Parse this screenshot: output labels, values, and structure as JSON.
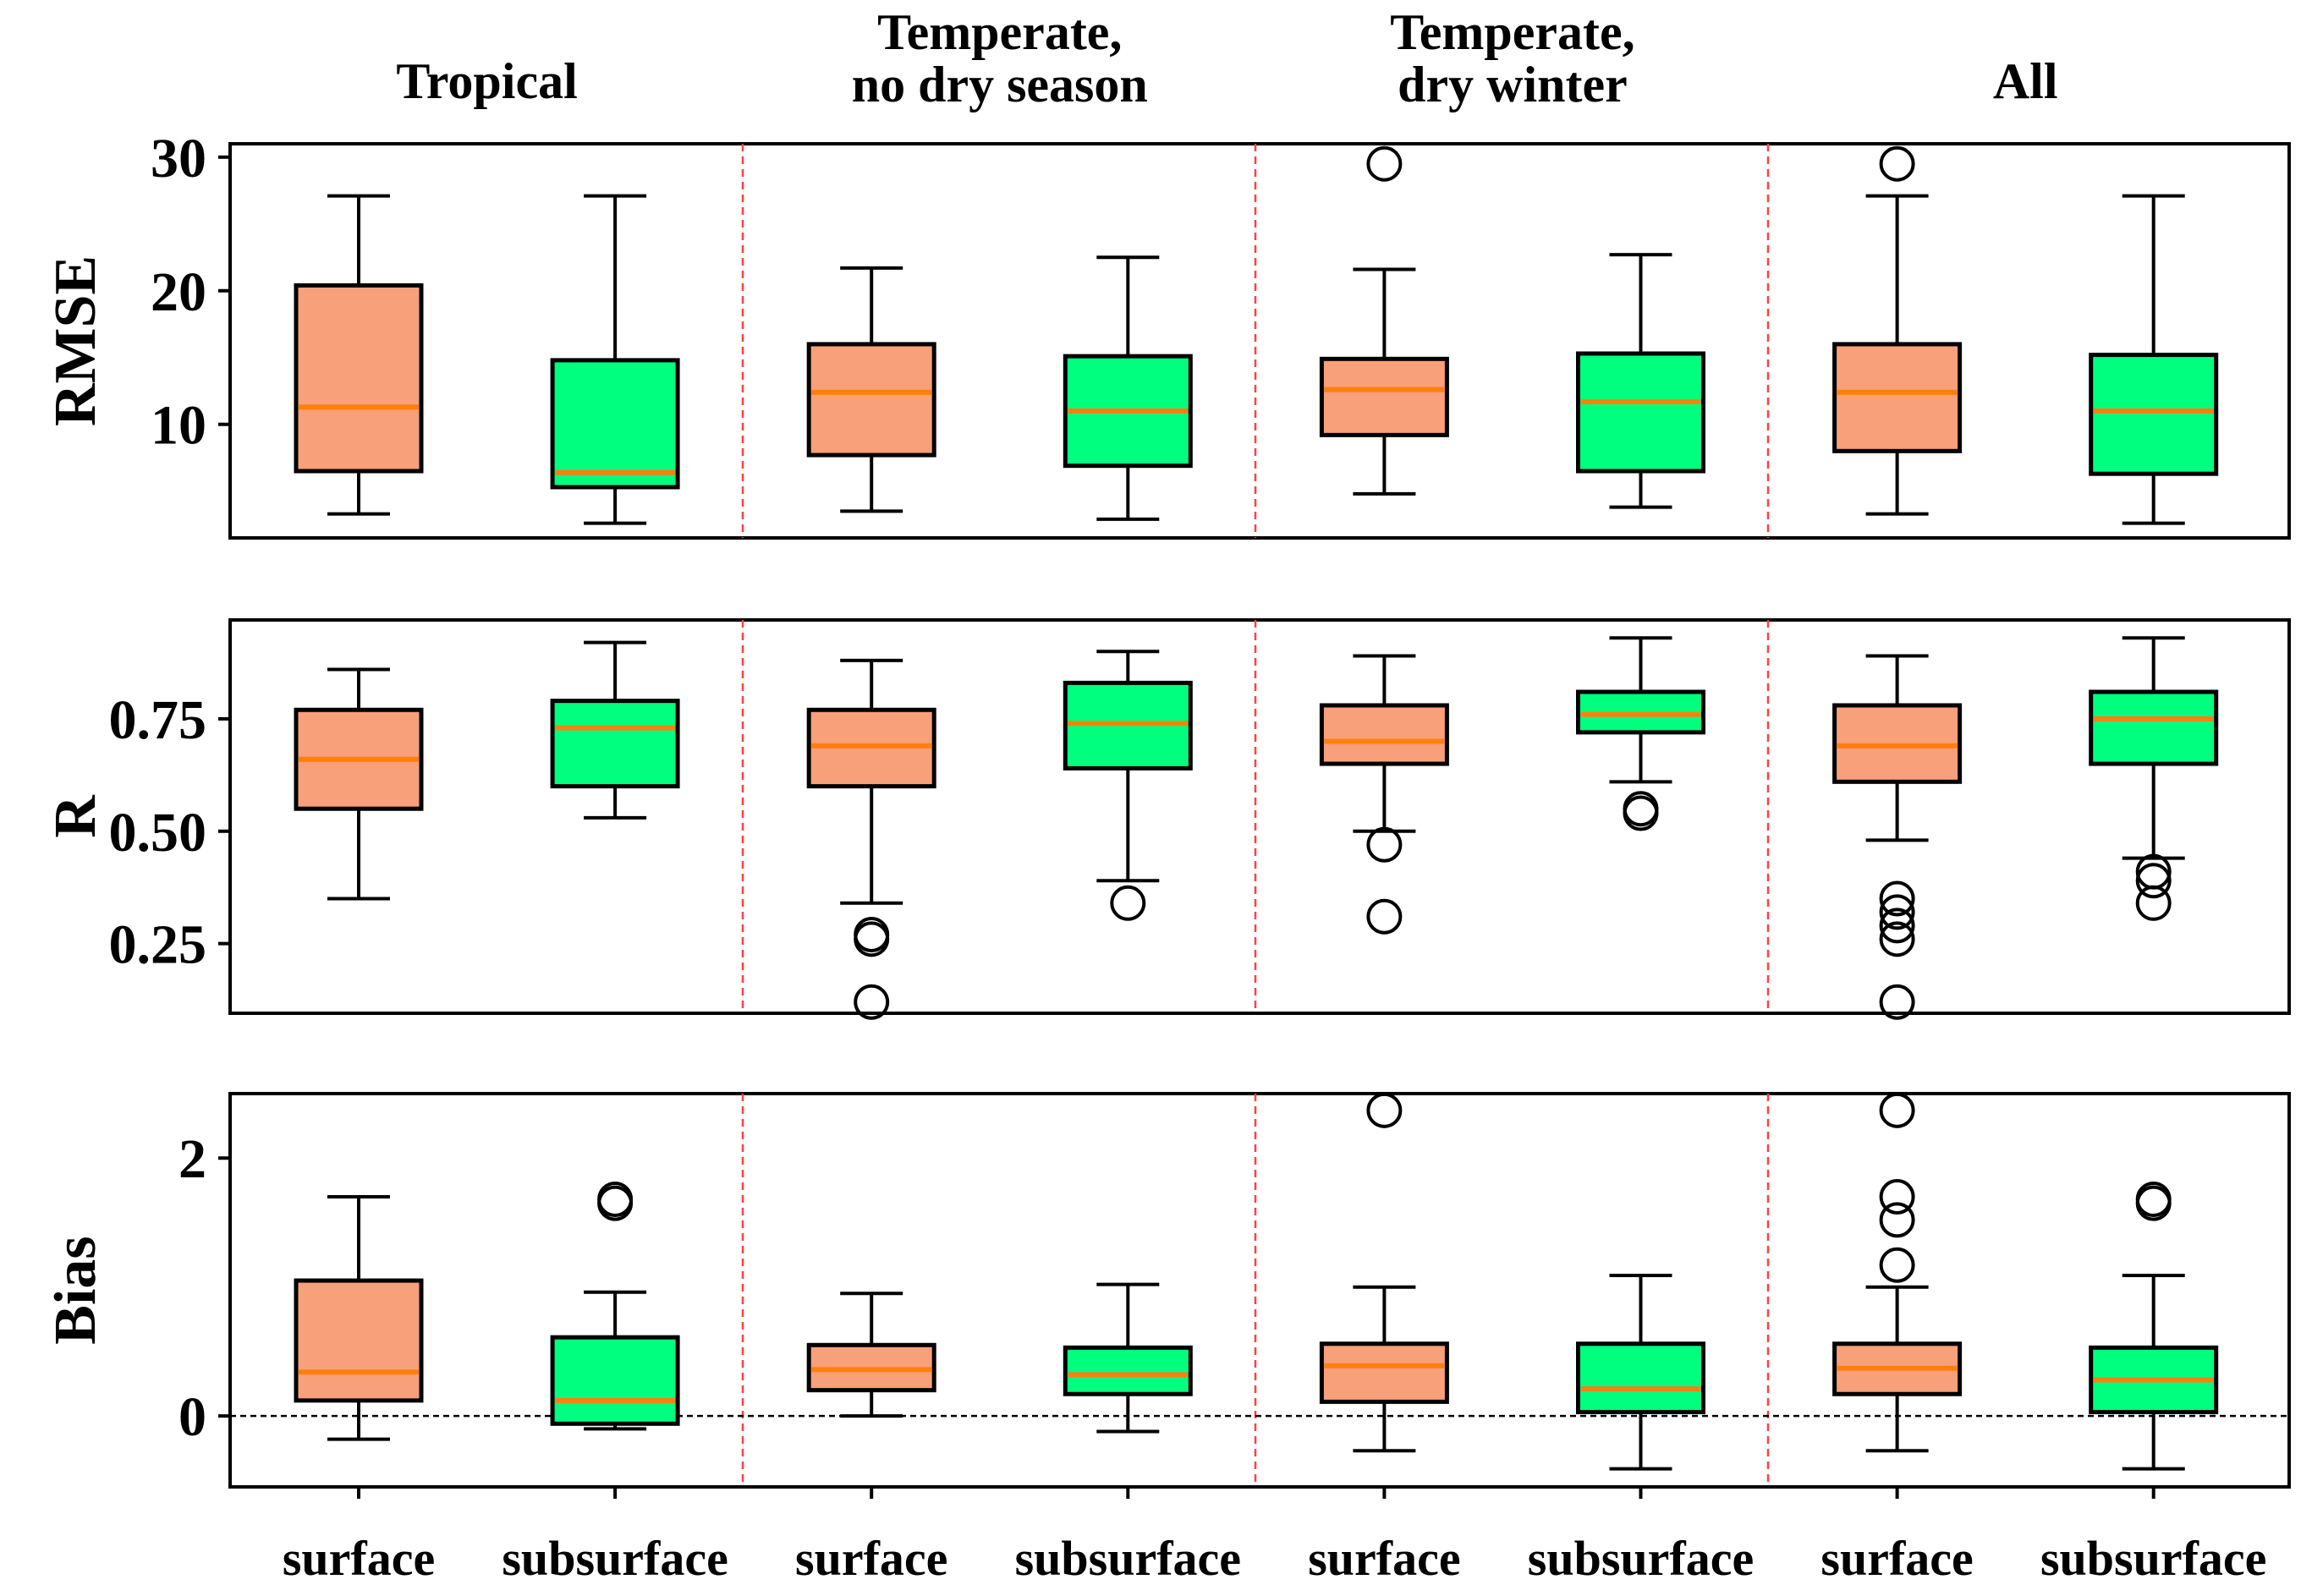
{
  "chart_data": {
    "type": "boxplot",
    "group_titles": [
      [
        "Tropical"
      ],
      [
        "Temperate,",
        "no dry season"
      ],
      [
        "Temperate,",
        "dry winter"
      ],
      [
        "All"
      ]
    ],
    "categories": [
      "surface",
      "subsurface",
      "surface",
      "subsurface",
      "surface",
      "subsurface",
      "surface",
      "subsurface"
    ],
    "series_colors": {
      "surface": "#F8A07A",
      "subsurface": "#00FF7F",
      "median": "#FF7F0E",
      "separator": "#FF4040"
    },
    "panels": [
      {
        "ylabel": "RMSE",
        "ylim": [
          1.5,
          31.0
        ],
        "yticks": [
          10,
          20,
          30
        ],
        "ytick_labels": [
          "10",
          "20",
          "30"
        ],
        "zero_line": false,
        "boxes": [
          {
            "q1": 6.5,
            "median": 11.3,
            "q3": 20.4,
            "whislo": 3.3,
            "whishi": 27.1,
            "fliers": []
          },
          {
            "q1": 5.3,
            "median": 6.4,
            "q3": 14.8,
            "whislo": 2.6,
            "whishi": 27.1,
            "fliers": []
          },
          {
            "q1": 7.7,
            "median": 12.4,
            "q3": 16.0,
            "whislo": 3.5,
            "whishi": 21.7,
            "fliers": []
          },
          {
            "q1": 6.9,
            "median": 11.0,
            "q3": 15.1,
            "whislo": 2.9,
            "whishi": 22.5,
            "fliers": []
          },
          {
            "q1": 9.2,
            "median": 12.6,
            "q3": 14.9,
            "whislo": 4.8,
            "whishi": 21.6,
            "fliers": [
              29.5
            ]
          },
          {
            "q1": 6.5,
            "median": 11.7,
            "q3": 15.3,
            "whislo": 3.8,
            "whishi": 22.7,
            "fliers": []
          },
          {
            "q1": 8.0,
            "median": 12.4,
            "q3": 16.0,
            "whislo": 3.3,
            "whishi": 27.1,
            "fliers": [
              29.5
            ]
          },
          {
            "q1": 6.3,
            "median": 11.0,
            "q3": 15.2,
            "whislo": 2.6,
            "whishi": 27.1,
            "fliers": []
          }
        ]
      },
      {
        "ylabel": "R",
        "ylim": [
          0.095,
          0.97
        ],
        "yticks": [
          0.25,
          0.5,
          0.75
        ],
        "ytick_labels": [
          "0.25",
          "0.50",
          "0.75"
        ],
        "zero_line": false,
        "boxes": [
          {
            "q1": 0.55,
            "median": 0.66,
            "q3": 0.77,
            "whislo": 0.35,
            "whishi": 0.86,
            "fliers": []
          },
          {
            "q1": 0.6,
            "median": 0.73,
            "q3": 0.79,
            "whislo": 0.53,
            "whishi": 0.92,
            "fliers": []
          },
          {
            "q1": 0.6,
            "median": 0.69,
            "q3": 0.77,
            "whislo": 0.34,
            "whishi": 0.88,
            "fliers": [
              0.27,
              0.26,
              0.12
            ]
          },
          {
            "q1": 0.64,
            "median": 0.74,
            "q3": 0.83,
            "whislo": 0.39,
            "whishi": 0.9,
            "fliers": [
              0.34
            ]
          },
          {
            "q1": 0.65,
            "median": 0.7,
            "q3": 0.78,
            "whislo": 0.5,
            "whishi": 0.89,
            "fliers": [
              0.47,
              0.31
            ]
          },
          {
            "q1": 0.72,
            "median": 0.76,
            "q3": 0.81,
            "whislo": 0.61,
            "whishi": 0.93,
            "fliers": [
              0.55,
              0.54
            ]
          },
          {
            "q1": 0.61,
            "median": 0.69,
            "q3": 0.78,
            "whislo": 0.48,
            "whishi": 0.89,
            "fliers": [
              0.35,
              0.32,
              0.29,
              0.26,
              0.12
            ]
          },
          {
            "q1": 0.65,
            "median": 0.75,
            "q3": 0.81,
            "whislo": 0.44,
            "whishi": 0.93,
            "fliers": [
              0.41,
              0.39,
              0.34
            ]
          }
        ]
      },
      {
        "ylabel": "Bias",
        "ylim": [
          -0.55,
          2.5
        ],
        "yticks": [
          0,
          2
        ],
        "ytick_labels": [
          "0",
          "2"
        ],
        "zero_line": true,
        "boxes": [
          {
            "q1": 0.12,
            "median": 0.34,
            "q3": 1.05,
            "whislo": -0.18,
            "whishi": 1.7,
            "fliers": []
          },
          {
            "q1": -0.06,
            "median": 0.12,
            "q3": 0.61,
            "whislo": -0.1,
            "whishi": 0.96,
            "fliers": [
              1.68,
              1.65
            ]
          },
          {
            "q1": 0.2,
            "median": 0.36,
            "q3": 0.55,
            "whislo": 0.0,
            "whishi": 0.95,
            "fliers": []
          },
          {
            "q1": 0.17,
            "median": 0.32,
            "q3": 0.53,
            "whislo": -0.12,
            "whishi": 1.02,
            "fliers": []
          },
          {
            "q1": 0.11,
            "median": 0.39,
            "q3": 0.56,
            "whislo": -0.27,
            "whishi": 1.0,
            "fliers": [
              2.37
            ]
          },
          {
            "q1": 0.03,
            "median": 0.21,
            "q3": 0.56,
            "whislo": -0.41,
            "whishi": 1.09,
            "fliers": []
          },
          {
            "q1": 0.17,
            "median": 0.37,
            "q3": 0.56,
            "whislo": -0.27,
            "whishi": 1.0,
            "fliers": [
              2.37,
              1.7,
              1.52,
              1.17
            ]
          },
          {
            "q1": 0.03,
            "median": 0.28,
            "q3": 0.53,
            "whislo": -0.41,
            "whishi": 1.09,
            "fliers": [
              1.68,
              1.65
            ]
          }
        ]
      }
    ]
  }
}
